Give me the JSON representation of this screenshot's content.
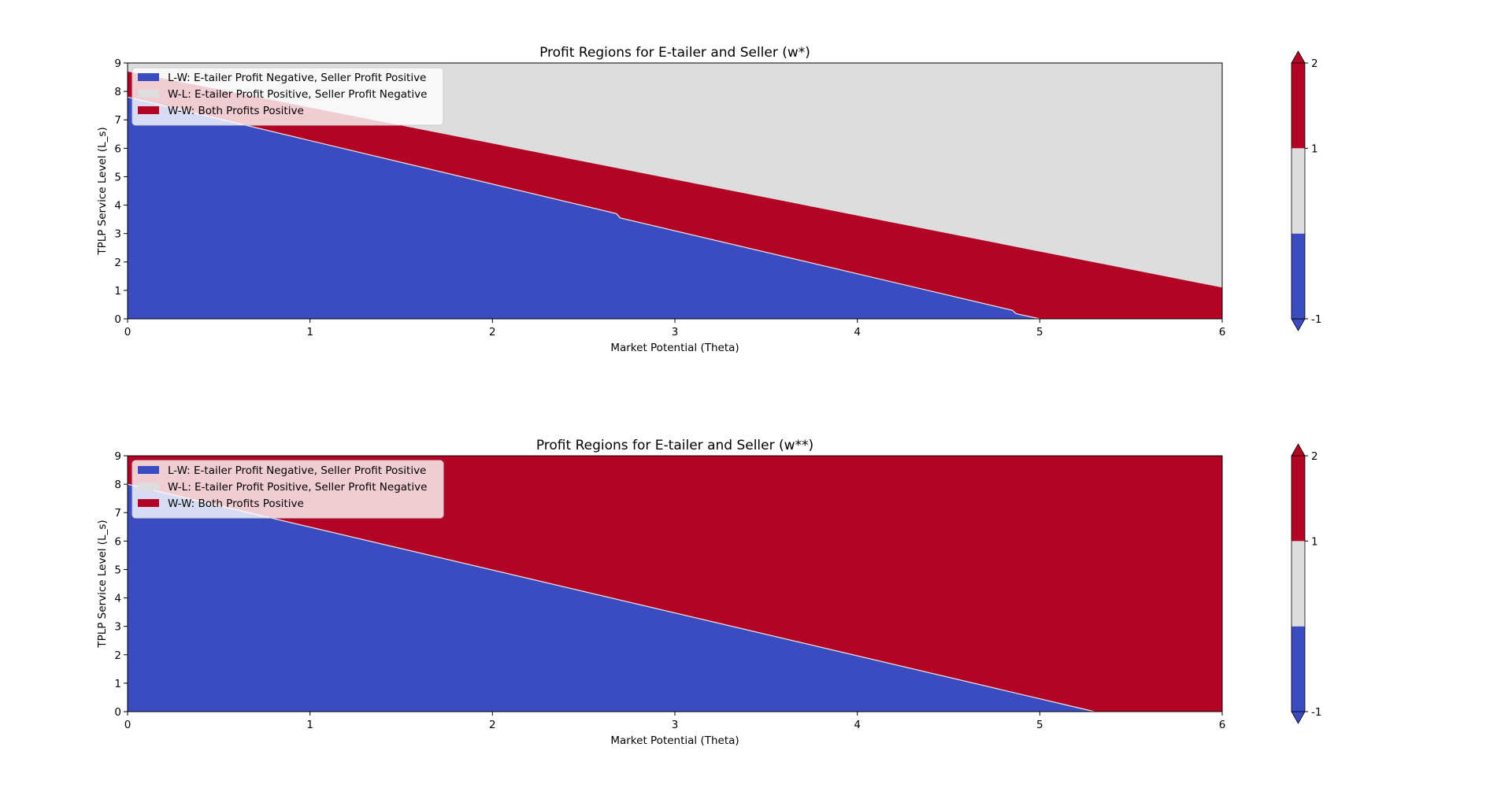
{
  "chart_data": [
    {
      "type": "contourf",
      "title": "Profit Regions for E-tailer and Seller (w*)",
      "xlabel": "Market Potential (Theta)",
      "ylabel": "TPLP Service Level (L_s)",
      "xlim": [
        0,
        6
      ],
      "ylim": [
        0,
        9
      ],
      "xticks": [
        "0",
        "1",
        "2",
        "3",
        "4",
        "5",
        "6"
      ],
      "yticks": [
        "0",
        "1",
        "2",
        "3",
        "4",
        "5",
        "6",
        "7",
        "8",
        "9"
      ],
      "legend_position": "upper-left",
      "legend": [
        {
          "label": "L-W: E-tailer Profit Negative, Seller Profit Positive",
          "color": "#3b4cc0"
        },
        {
          "label": "W-L: E-tailer Profit Positive, Seller Profit Negative",
          "color": "#dddddd"
        },
        {
          "label": "W-W: Both Profits Positive",
          "color": "#b40426"
        }
      ],
      "regions": [
        {
          "name": "L-W",
          "value": -1,
          "color": "#3b4cc0",
          "lower_boundary": [
            [
              0,
              0
            ],
            [
              6,
              0
            ]
          ],
          "upper_boundary": [
            [
              0,
              7.8
            ],
            [
              2.68,
              3.7
            ],
            [
              2.7,
              3.55
            ],
            [
              4.85,
              0.3
            ],
            [
              4.87,
              0.18
            ],
            [
              5.0,
              0
            ]
          ]
        },
        {
          "name": "W-W",
          "value": 2,
          "color": "#b40426",
          "upper_boundary": [
            [
              0,
              8.7
            ],
            [
              6,
              1.1
            ]
          ]
        },
        {
          "name": "W-L",
          "value": 1,
          "color": "#dddddd",
          "upper_boundary": [
            [
              0,
              9
            ],
            [
              6,
              9
            ]
          ]
        }
      ],
      "colorbar": {
        "ticks": [
          "-1",
          "1",
          "2"
        ],
        "levels": [
          -1,
          0,
          1,
          2
        ],
        "colors": [
          "#3b4cc0",
          "#dddddd",
          "#b40426"
        ],
        "extend": "both"
      }
    },
    {
      "type": "contourf",
      "title": "Profit Regions for E-tailer and Seller (w**)",
      "xlabel": "Market Potential (Theta)",
      "ylabel": "TPLP Service Level (L_s)",
      "xlim": [
        0,
        6
      ],
      "ylim": [
        0,
        9
      ],
      "xticks": [
        "0",
        "1",
        "2",
        "3",
        "4",
        "5",
        "6"
      ],
      "yticks": [
        "0",
        "1",
        "2",
        "3",
        "4",
        "5",
        "6",
        "7",
        "8",
        "9"
      ],
      "legend_position": "upper-left",
      "legend": [
        {
          "label": "L-W: E-tailer Profit Negative, Seller Profit Positive",
          "color": "#3b4cc0"
        },
        {
          "label": "W-L: E-tailer Profit Positive, Seller Profit Negative",
          "color": "#dddddd"
        },
        {
          "label": "W-W: Both Profits Positive",
          "color": "#b40426"
        }
      ],
      "regions": [
        {
          "name": "L-W",
          "value": -1,
          "color": "#3b4cc0",
          "lower_boundary": [
            [
              0,
              0
            ],
            [
              6,
              0
            ]
          ],
          "upper_boundary": [
            [
              0,
              8.0
            ],
            [
              5.3,
              0
            ]
          ]
        },
        {
          "name": "W-W",
          "value": 2,
          "color": "#b40426",
          "upper_boundary": [
            [
              0,
              9
            ],
            [
              6,
              9
            ]
          ]
        }
      ],
      "colorbar": {
        "ticks": [
          "-1",
          "1",
          "2"
        ],
        "levels": [
          -1,
          0,
          1,
          2
        ],
        "colors": [
          "#3b4cc0",
          "#dddddd",
          "#b40426"
        ],
        "extend": "both"
      }
    }
  ]
}
